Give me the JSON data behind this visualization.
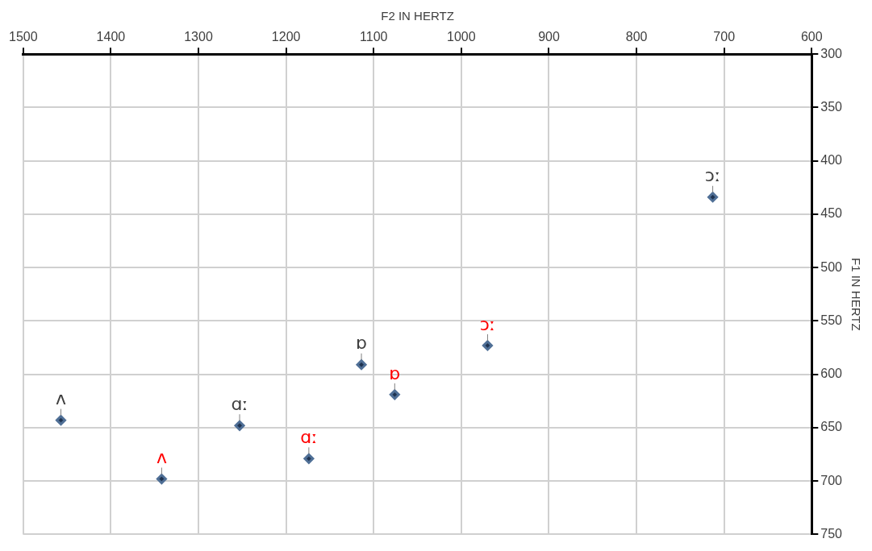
{
  "chart_data": {
    "type": "scatter",
    "xlabel": "F2 IN HERTZ",
    "ylabel": "F1 IN HERTZ",
    "xlim": [
      1500,
      600
    ],
    "ylim": [
      750,
      300
    ],
    "xticks": [
      1500,
      1400,
      1300,
      1200,
      1100,
      1000,
      900,
      800,
      700,
      600
    ],
    "yticks": [
      300,
      350,
      400,
      450,
      500,
      550,
      600,
      650,
      700,
      750
    ],
    "grid": true,
    "legend": false,
    "marker": "diamond",
    "series": [
      {
        "color": "#4f6f96",
        "x": [
          1457,
          1253,
          1114,
          713
        ],
        "values": [
          643,
          648,
          591,
          434
        ],
        "value_labels": [
          "ʌ",
          "ɑː",
          "ɒ",
          "ɔː"
        ]
      },
      {
        "color": "#4f6f96",
        "x": [
          1342,
          1174,
          1076,
          970
        ],
        "values": [
          698,
          679,
          619,
          573
        ],
        "value_labels": [
          "ʌ",
          "ɑː",
          "ɒ",
          "ɔː"
        ]
      }
    ]
  }
}
